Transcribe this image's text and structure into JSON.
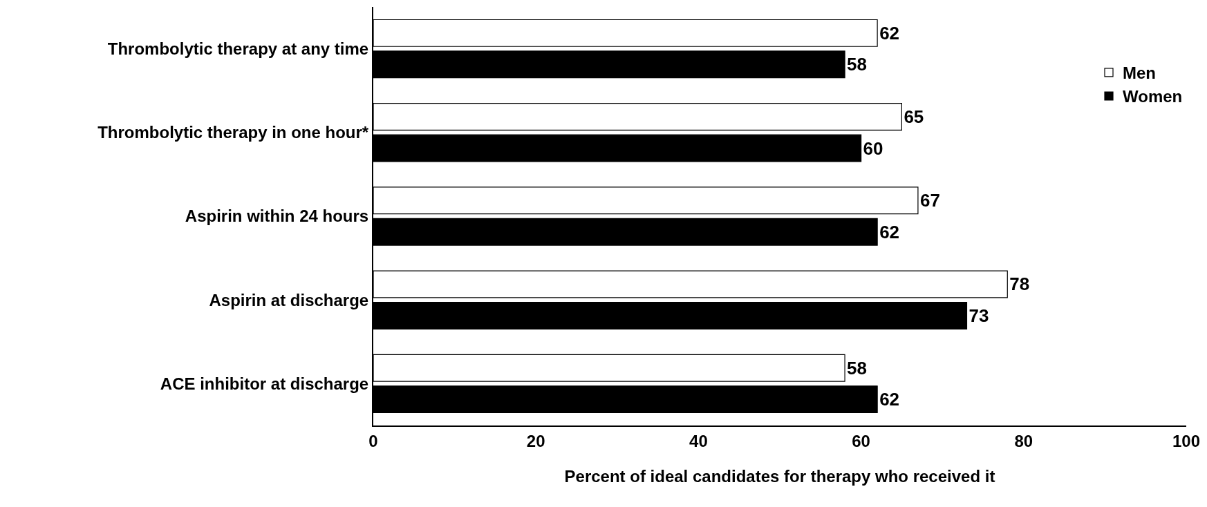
{
  "chart_data": {
    "type": "bar",
    "orientation": "horizontal",
    "xlabel": "Percent of ideal candidates for therapy who received it",
    "categories": [
      "Thrombolytic therapy at any time",
      "Thrombolytic therapy in one hour*",
      "Aspirin within 24 hours",
      "Aspirin at discharge",
      "ACE inhibitor at discharge"
    ],
    "series": [
      {
        "name": "Men",
        "color": "#ffffff",
        "values": [
          62,
          65,
          67,
          78,
          58
        ]
      },
      {
        "name": "Women",
        "color": "#000000",
        "values": [
          58,
          60,
          62,
          73,
          62
        ]
      }
    ],
    "xlim": [
      0,
      100
    ],
    "xticks": [
      0,
      20,
      40,
      60,
      80,
      100
    ],
    "data_labels": true,
    "legend": "top right"
  }
}
